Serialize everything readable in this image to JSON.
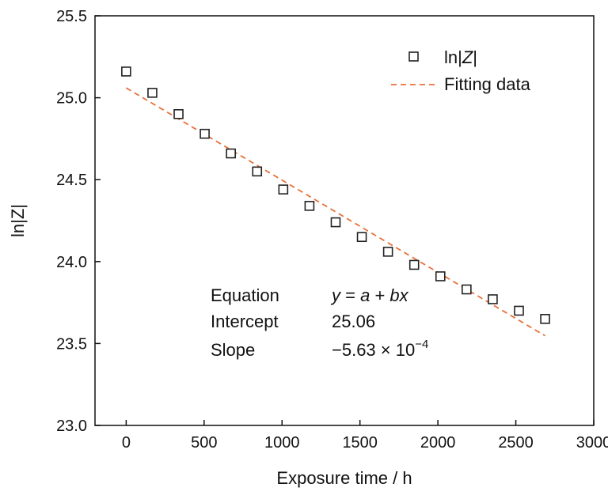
{
  "chart_data": {
    "type": "scatter",
    "xlabel": "Exposure time / h",
    "ylabel": "ln|Z|",
    "xlim": [
      -200,
      3000
    ],
    "ylim": [
      23.0,
      25.5
    ],
    "xticks": [
      0,
      500,
      1000,
      1500,
      2000,
      2500,
      3000
    ],
    "yticks": [
      23.0,
      23.5,
      24.0,
      24.5,
      25.0,
      25.5
    ],
    "xtick_labels": [
      "0",
      "500",
      "1000",
      "1500",
      "2000",
      "2500",
      "3000"
    ],
    "ytick_labels": [
      "23.0",
      "23.5",
      "24.0",
      "24.5",
      "25.0",
      "25.5"
    ],
    "grid": false,
    "legend_position": "top-right",
    "series": [
      {
        "name": "ln|Z|",
        "marker": "open-square",
        "color": "#222222",
        "x": [
          0,
          168,
          336,
          504,
          672,
          840,
          1008,
          1176,
          1344,
          1512,
          1680,
          1848,
          2016,
          2184,
          2352,
          2520,
          2688
        ],
        "y": [
          25.16,
          25.03,
          24.9,
          24.78,
          24.66,
          24.55,
          24.44,
          24.34,
          24.24,
          24.15,
          24.06,
          23.98,
          23.91,
          23.83,
          23.77,
          23.7,
          23.65
        ]
      },
      {
        "name": "Fitting data",
        "line_style": "dashed",
        "color": "#e8703a",
        "x": [
          0,
          2688
        ],
        "y": [
          25.06,
          23.547
        ]
      }
    ],
    "legend": {
      "entries": [
        {
          "label_plain": "ln|",
          "label_italic": "Z",
          "label_end": "|"
        },
        {
          "label": "Fitting data"
        }
      ]
    },
    "annotation": {
      "rows": [
        {
          "key": "Equation",
          "value_parts": [
            {
              "text": "y",
              "italic": true
            },
            {
              "text": " = ",
              "italic": false
            },
            {
              "text": "a",
              "italic": true
            },
            {
              "text": " + ",
              "italic": false
            },
            {
              "text": "bx",
              "italic": true
            }
          ]
        },
        {
          "key": "Intercept",
          "value": "25.06"
        },
        {
          "key": "Slope",
          "value_base": "−5.63 × 10",
          "value_exp": "−4"
        }
      ]
    }
  }
}
